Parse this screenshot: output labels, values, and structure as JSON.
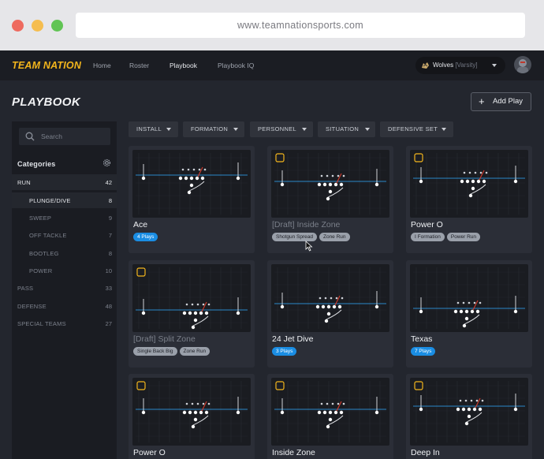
{
  "browser": {
    "url": "www.teamnationsports.com",
    "dots": [
      "#ee6a5f",
      "#f5bd4f",
      "#61c454"
    ]
  },
  "nav": {
    "logo": "TEAM NATION",
    "links": [
      "Home",
      "Roster",
      "Playbook",
      "Playbook IQ"
    ],
    "active": "Playbook",
    "team_name": "Wolves",
    "team_sub": "[Varsity]"
  },
  "page": {
    "title": "PLAYBOOK",
    "add_play": "Add Play"
  },
  "sidebar": {
    "search_placeholder": "Search",
    "categories_label": "Categories",
    "items": [
      {
        "label": "RUN",
        "count": "42"
      },
      {
        "label": "PLUNGE/DIVE",
        "count": "8"
      },
      {
        "label": "SWEEP",
        "count": "9"
      },
      {
        "label": "OFF TACKLE",
        "count": "7"
      },
      {
        "label": "BOOTLEG",
        "count": "8"
      },
      {
        "label": "POWER",
        "count": "10"
      },
      {
        "label": "PASS",
        "count": "33"
      },
      {
        "label": "DEFENSE",
        "count": "48"
      },
      {
        "label": "SPECIAL TEAMS",
        "count": "27"
      }
    ]
  },
  "filters": [
    "INSTALL",
    "FORMATION",
    "PERSONNEL",
    "SITUATION",
    "DEFENSIVE SET"
  ],
  "cards": [
    {
      "title": "Ace",
      "draft": false,
      "tags": [
        {
          "text": "4 Plays",
          "style": "blue"
        }
      ]
    },
    {
      "title": "[Draft] Inside Zone",
      "draft": true,
      "tags": [
        {
          "text": "Shotgun Spread",
          "style": "gray"
        },
        {
          "text": "Zone Run",
          "style": "gray"
        }
      ]
    },
    {
      "title": "Power O",
      "draft": false,
      "tags": [
        {
          "text": "I Formation",
          "style": "gray"
        },
        {
          "text": "Power Run",
          "style": "gray"
        }
      ]
    },
    {
      "title": "[Draft] Split Zone",
      "draft": true,
      "tags": [
        {
          "text": "Single Back Big",
          "style": "gray"
        },
        {
          "text": "Zone Run",
          "style": "gray"
        }
      ]
    },
    {
      "title": "24 Jet Dive",
      "draft": false,
      "tags": [
        {
          "text": "3 Plays",
          "style": "blue"
        }
      ]
    },
    {
      "title": "Texas",
      "draft": false,
      "tags": [
        {
          "text": "7 Plays",
          "style": "blue"
        }
      ]
    },
    {
      "title": "Power O",
      "draft": false,
      "tags": []
    },
    {
      "title": "Inside Zone",
      "draft": false,
      "tags": []
    },
    {
      "title": "Deep In",
      "draft": false,
      "tags": []
    }
  ],
  "colors": {
    "accent": "#f3b51c",
    "los_line": "#2b89c9",
    "route_red": "#d23a2b"
  }
}
